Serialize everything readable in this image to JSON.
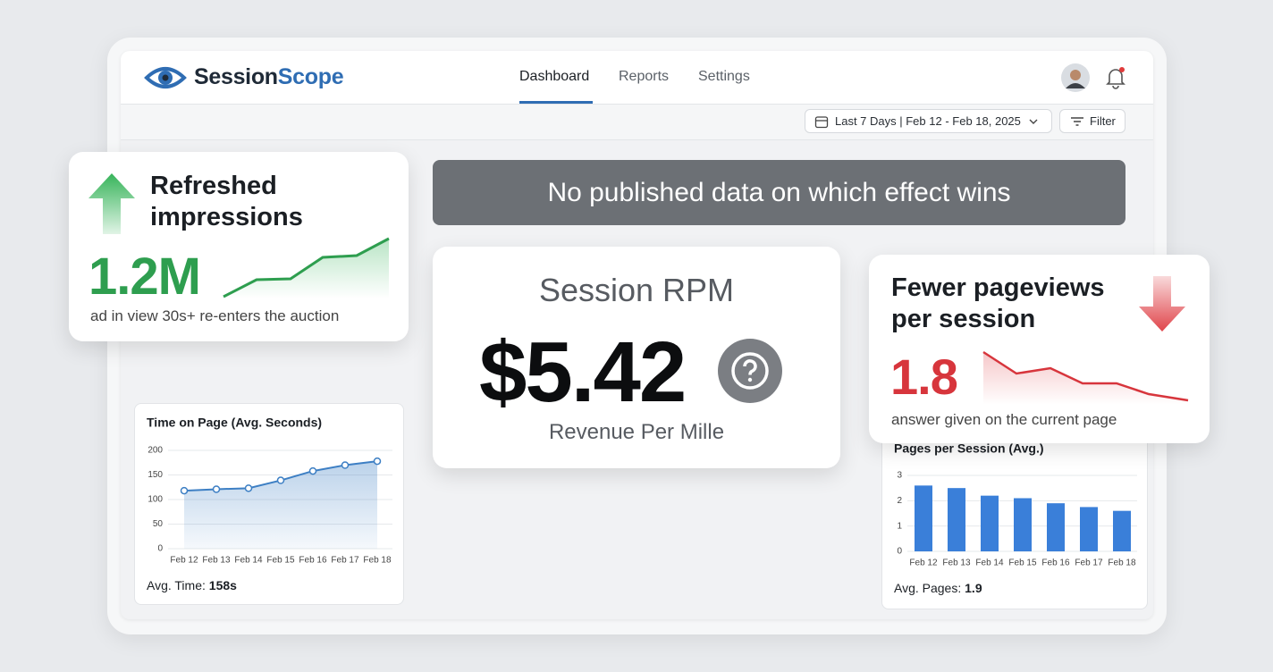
{
  "header": {
    "brand": [
      "Session",
      "Scope"
    ],
    "nav": [
      "Dashboard",
      "Reports",
      "Settings"
    ]
  },
  "toolbar": {
    "date_range": "Last 7 Days | Feb 12 - Feb 18, 2025",
    "filter": "Filter"
  },
  "banner": "No published data on which effect wins",
  "impressions_card": {
    "title": "Refreshed impressions",
    "value": "1.2M",
    "caption": "ad in view 30s+ re-enters the auction"
  },
  "rpm_card": {
    "title": "Session RPM",
    "value": "$5.42",
    "subtitle": "Revenue Per Mille"
  },
  "pageviews_card": {
    "title": "Fewer pageviews per session",
    "value": "1.8",
    "caption": "answer given on the current page"
  },
  "chart_data": [
    {
      "type": "line",
      "title": "Time on Page (Avg. Seconds)",
      "categories": [
        "Feb 12",
        "Feb 13",
        "Feb 14",
        "Feb 15",
        "Feb 16",
        "Feb 17",
        "Feb 18"
      ],
      "values": [
        118,
        121,
        123,
        139,
        158,
        170,
        178
      ],
      "color": "#3d7fc4",
      "ylim": [
        0,
        200
      ],
      "yticks": [
        0,
        50,
        100,
        150,
        200
      ],
      "grid": true,
      "note_label": "Avg. Time:",
      "note_value": "158s"
    },
    {
      "type": "bar",
      "title": "Pages per Session (Avg.)",
      "categories": [
        "Feb 12",
        "Feb 13",
        "Feb 14",
        "Feb 15",
        "Feb 16",
        "Feb 17",
        "Feb 18"
      ],
      "values": [
        2.6,
        2.5,
        2.2,
        2.1,
        1.9,
        1.75,
        1.6
      ],
      "color": "#3a7fd9",
      "ylim": [
        0,
        3
      ],
      "yticks": [
        0,
        1,
        2,
        3
      ],
      "grid": true,
      "note_label": "Avg. Pages:",
      "note_value": "1.9"
    }
  ]
}
